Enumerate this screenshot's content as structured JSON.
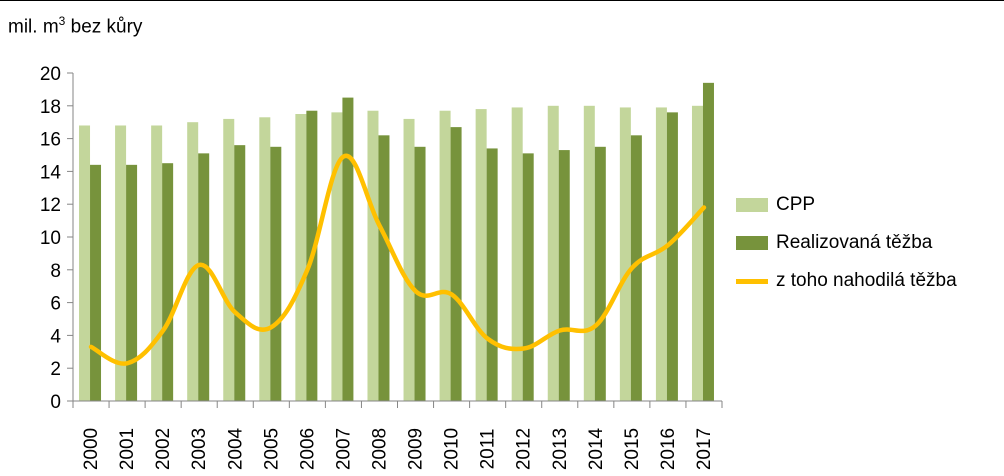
{
  "chart_data": {
    "type": "bar",
    "ylabel_prefix": "mil. m",
    "ylabel_sup": "3",
    "ylabel_suffix": " bez kůry",
    "categories": [
      "2000",
      "2001",
      "2002",
      "2003",
      "2004",
      "2005",
      "2006",
      "2007",
      "2008",
      "2009",
      "2010",
      "2011",
      "2012",
      "2013",
      "2014",
      "2015",
      "2016",
      "2017"
    ],
    "ylim": [
      0,
      20
    ],
    "yticks": [
      0,
      2,
      4,
      6,
      8,
      10,
      12,
      14,
      16,
      18,
      20
    ],
    "grid": false,
    "legend_position": "right",
    "series": [
      {
        "name": "CPP",
        "kind": "bar",
        "color": "#c3d69b",
        "values": [
          16.8,
          16.8,
          16.8,
          17.0,
          17.2,
          17.3,
          17.5,
          17.6,
          17.7,
          17.2,
          17.7,
          17.8,
          17.9,
          18.0,
          18.0,
          17.9,
          17.9,
          18.0
        ]
      },
      {
        "name": "Realizovaná těžba",
        "kind": "bar",
        "color": "#77933c",
        "values": [
          14.4,
          14.4,
          14.5,
          15.1,
          15.6,
          15.5,
          17.7,
          18.5,
          16.2,
          15.5,
          16.7,
          15.4,
          15.1,
          15.3,
          15.5,
          16.2,
          17.6,
          19.4
        ]
      },
      {
        "name": "z toho nahodilá těžba",
        "kind": "line",
        "color": "#ffc000",
        "values": [
          3.3,
          2.3,
          4.3,
          8.3,
          5.4,
          4.5,
          8.0,
          14.9,
          10.7,
          6.7,
          6.5,
          3.8,
          3.2,
          4.3,
          4.6,
          8.1,
          9.5,
          11.8
        ]
      }
    ]
  }
}
